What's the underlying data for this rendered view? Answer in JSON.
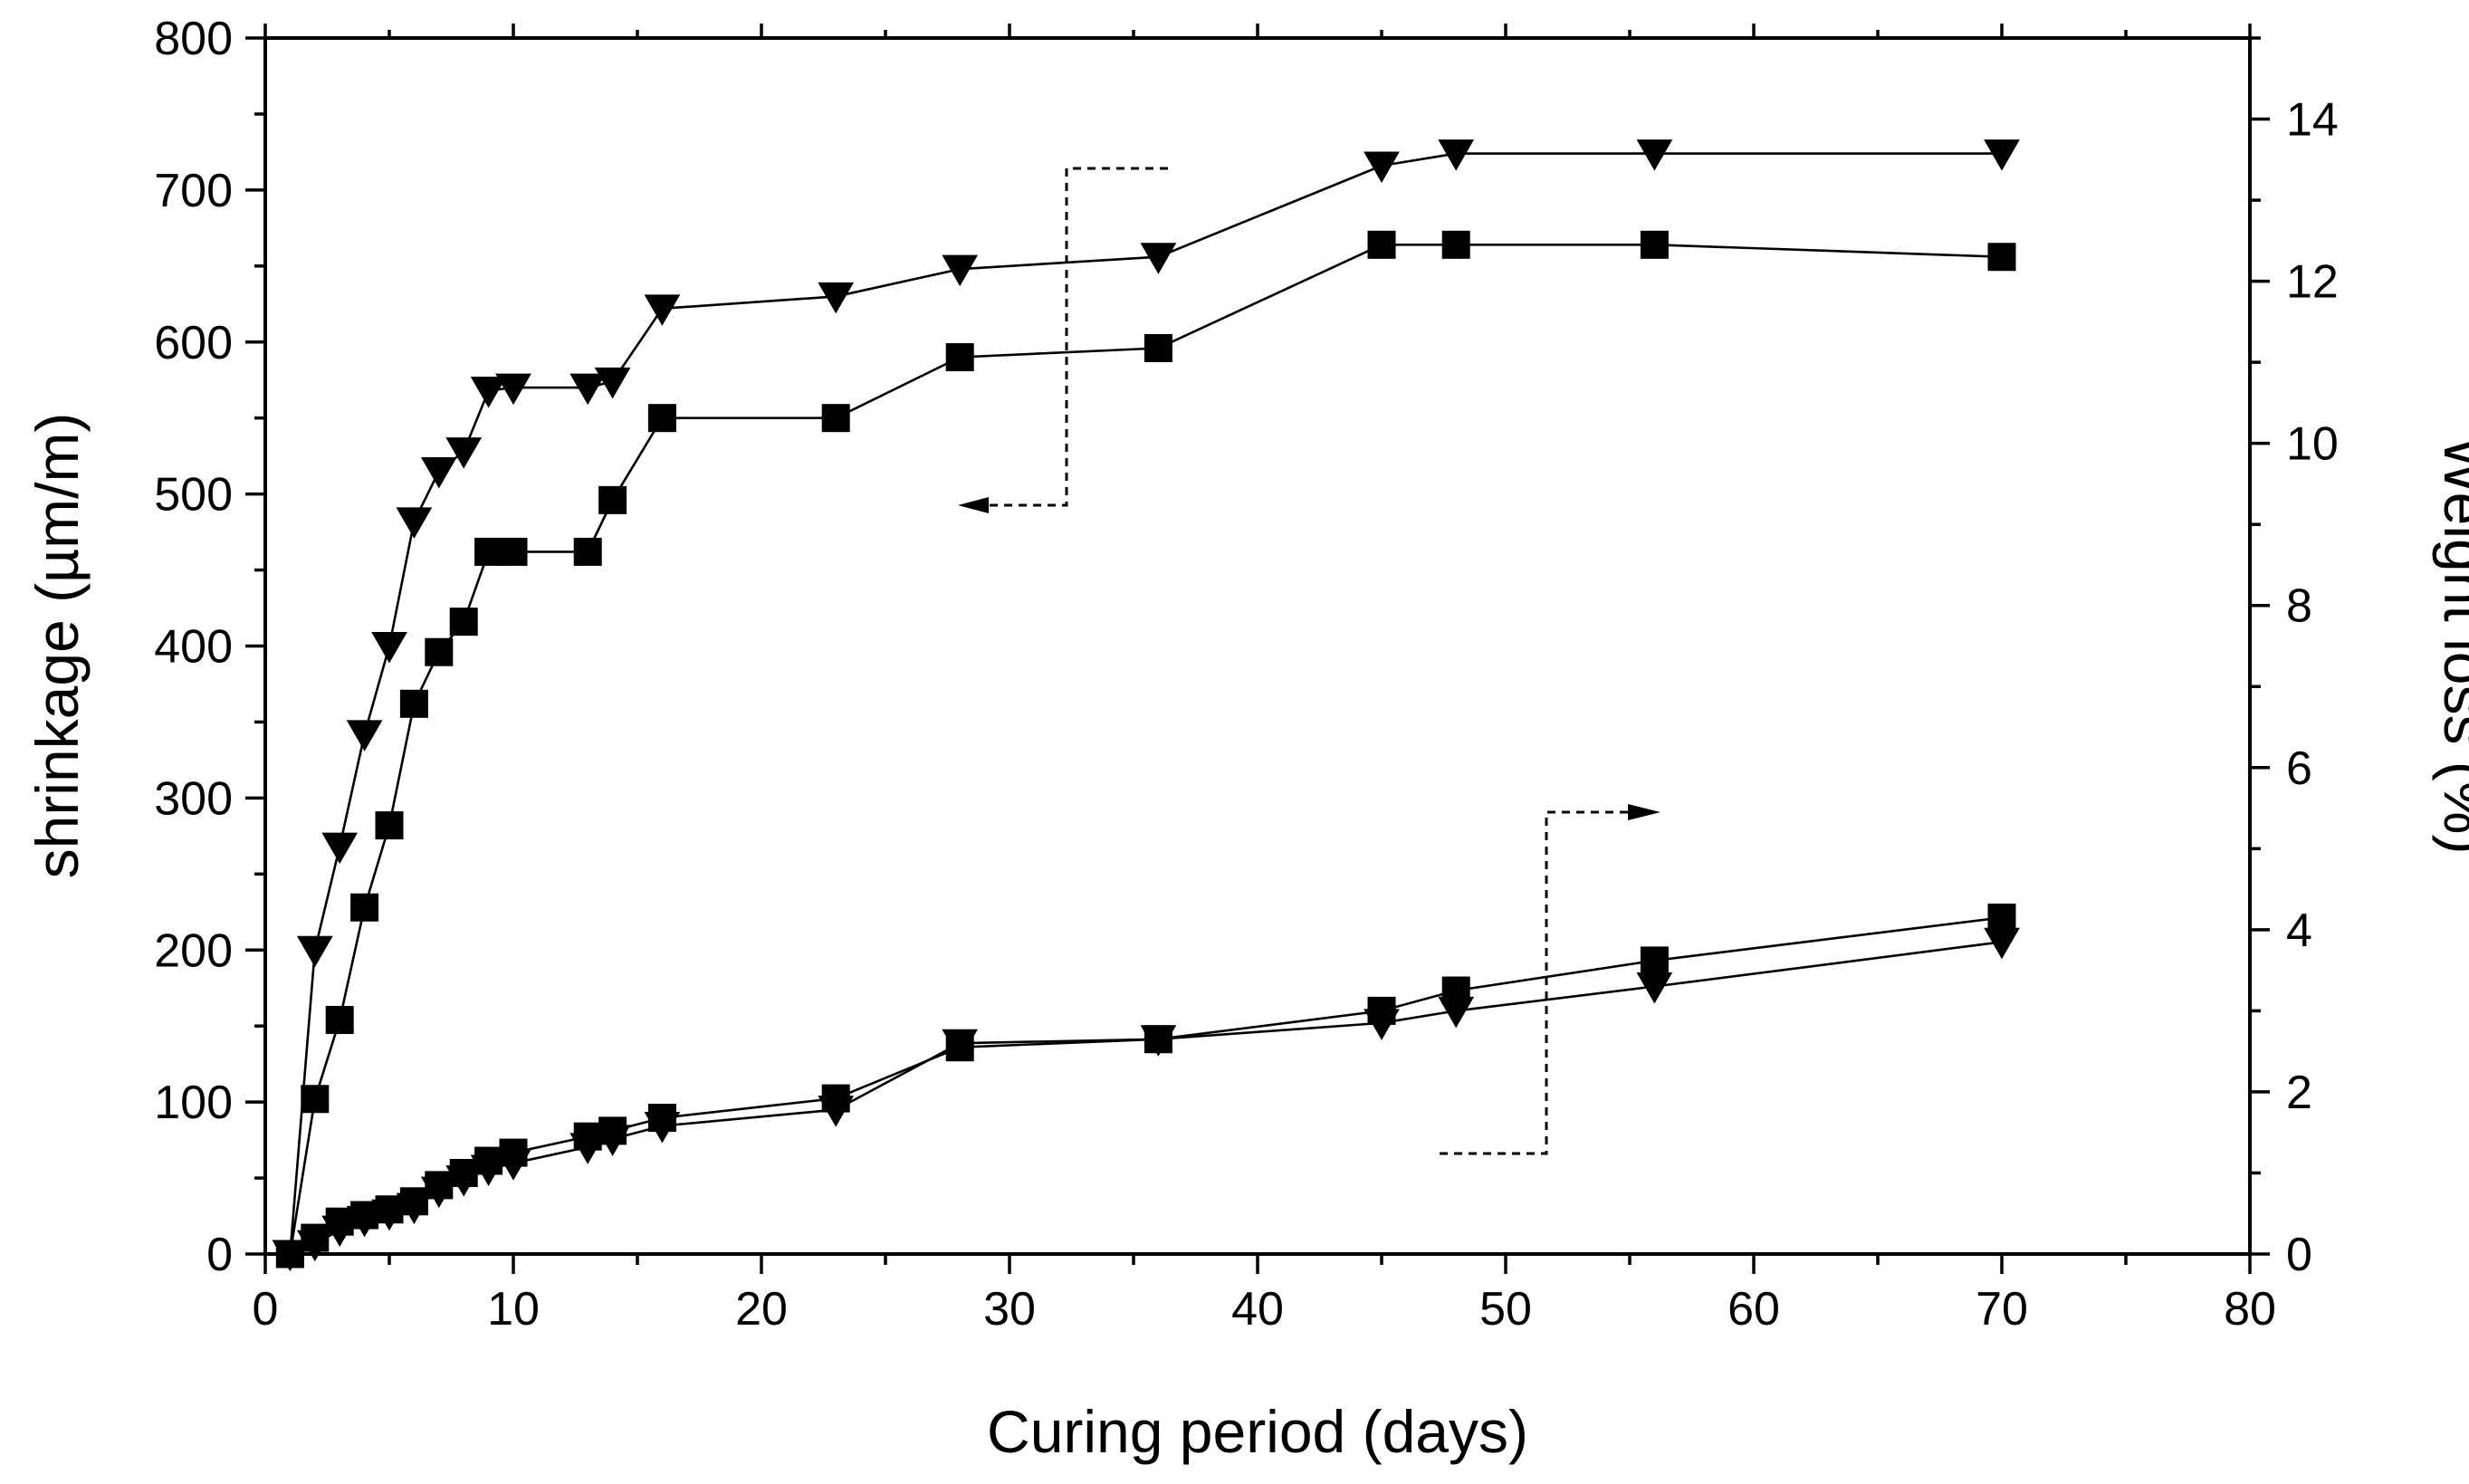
{
  "chart_data": {
    "type": "line",
    "xlabel": "Curing period (days)",
    "ylabel": "shrinkage (µm/m)",
    "y2label": "Weight loss (%)",
    "xlim": [
      0,
      80
    ],
    "ylim": [
      0,
      800
    ],
    "y2lim": [
      0,
      15
    ],
    "xticks": [
      0,
      10,
      20,
      30,
      40,
      50,
      60,
      70,
      80
    ],
    "yticks": [
      0,
      100,
      200,
      300,
      400,
      500,
      600,
      700,
      800
    ],
    "y2ticks": [
      0,
      2,
      4,
      6,
      8,
      10,
      12,
      14
    ],
    "grid": false,
    "legend": "none",
    "series": [
      {
        "axis": "left",
        "marker": "triangle-down",
        "x": [
          1,
          2,
          3,
          4,
          5,
          6,
          7,
          8,
          9,
          10,
          13,
          14,
          16,
          23,
          28,
          36,
          45,
          48,
          56,
          70
        ],
        "values": [
          0,
          200,
          268,
          342,
          400,
          482,
          515,
          528,
          568,
          570,
          570,
          574,
          622,
          630,
          648,
          656,
          716,
          724,
          724,
          724
        ]
      },
      {
        "axis": "left",
        "marker": "square",
        "x": [
          1,
          2,
          3,
          4,
          5,
          6,
          7,
          8,
          9,
          10,
          13,
          14,
          16,
          23,
          28,
          36,
          45,
          48,
          56,
          70
        ],
        "values": [
          0,
          102,
          154,
          228,
          282,
          362,
          396,
          416,
          462,
          462,
          462,
          496,
          550,
          550,
          590,
          596,
          664,
          664,
          664,
          656
        ]
      },
      {
        "axis": "right",
        "marker": "square",
        "x": [
          1,
          2,
          3,
          4,
          5,
          6,
          7,
          8,
          9,
          10,
          13,
          14,
          16,
          23,
          28,
          36,
          45,
          48,
          56,
          70
        ],
        "values": [
          0,
          0.2,
          0.4,
          0.48,
          0.55,
          0.65,
          0.85,
          1.0,
          1.15,
          1.25,
          1.45,
          1.52,
          1.68,
          1.92,
          2.55,
          2.65,
          3.0,
          3.25,
          3.62,
          4.15
        ]
      },
      {
        "axis": "right",
        "marker": "triangle-down",
        "x": [
          1,
          2,
          3,
          4,
          5,
          6,
          7,
          8,
          9,
          10,
          13,
          14,
          16,
          23,
          28,
          36,
          45,
          48,
          56,
          70
        ],
        "values": [
          0,
          0.12,
          0.3,
          0.42,
          0.5,
          0.58,
          0.78,
          0.92,
          1.05,
          1.12,
          1.32,
          1.42,
          1.58,
          1.78,
          2.6,
          2.65,
          2.85,
          3.0,
          3.3,
          3.85
        ]
      }
    ]
  }
}
